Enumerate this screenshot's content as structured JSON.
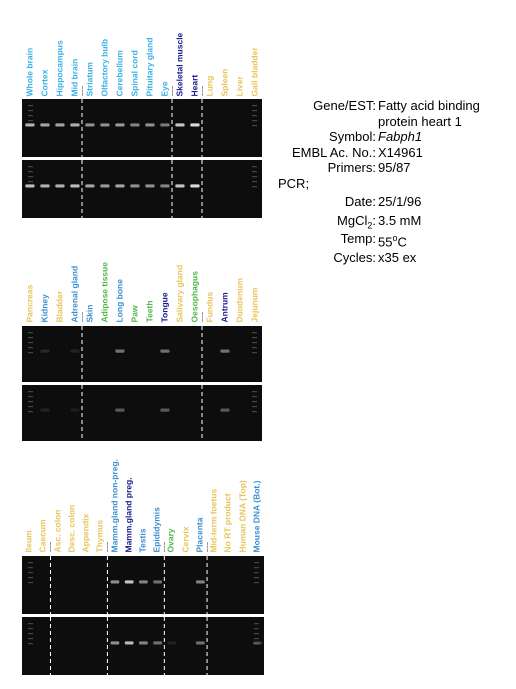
{
  "colors": {
    "brain": "#3ab0e6",
    "muscle": "#1a1a8c",
    "other": "#e8c45a",
    "green": "#4fb84a",
    "kidney": "#3a8fd0",
    "gel_bg": "#0d0d0d",
    "band": "#e6e6e6"
  },
  "panels": [
    {
      "labels": [
        {
          "text": "Whole brain",
          "color": "#3ab0e6"
        },
        {
          "text": "Cortex",
          "color": "#3ab0e6"
        },
        {
          "text": "Hippocampus",
          "color": "#3ab0e6"
        },
        {
          "text": "Mid brain",
          "color": "#3ab0e6"
        },
        {
          "text": "Striatum",
          "color": "#3ab0e6"
        },
        {
          "text": "Olfactory bulb",
          "color": "#3ab0e6"
        },
        {
          "text": "Cerebellum",
          "color": "#3ab0e6"
        },
        {
          "text": "Spinal cord",
          "color": "#3ab0e6"
        },
        {
          "text": "Pituitary gland",
          "color": "#3ab0e6"
        },
        {
          "text": "Eye",
          "color": "#3ab0e6"
        },
        {
          "text": "Skeletal muscle",
          "color": "#1a1a8c"
        },
        {
          "text": "Heart",
          "color": "#1a1a8c"
        },
        {
          "text": "Lung",
          "color": "#e8c45a"
        },
        {
          "text": "Spleen",
          "color": "#e8c45a"
        },
        {
          "text": "Liver",
          "color": "#e8c45a"
        },
        {
          "text": "Gall bladder",
          "color": "#e8c45a"
        }
      ],
      "gels": [
        {
          "bands": [
            0.75,
            0.7,
            0.7,
            0.75,
            0.6,
            0.6,
            0.65,
            0.55,
            0.6,
            0.5,
            0.85,
            0.95,
            0,
            0,
            0,
            0
          ]
        },
        {
          "bands": [
            0.8,
            0.75,
            0.75,
            0.8,
            0.7,
            0.65,
            0.7,
            0.6,
            0.6,
            0.55,
            0.85,
            0.95,
            0,
            0,
            0,
            0
          ]
        }
      ],
      "dividers": [
        4,
        10,
        12
      ]
    },
    {
      "labels": [
        {
          "text": "Pancreas",
          "color": "#e8c45a"
        },
        {
          "text": "Kidney",
          "color": "#3a8fd0"
        },
        {
          "text": "Bladder",
          "color": "#e8c45a"
        },
        {
          "text": "Adrenal gland",
          "color": "#3a8fd0"
        },
        {
          "text": "Skin",
          "color": "#3a8fd0"
        },
        {
          "text": "Adipose tissue",
          "color": "#4fb84a"
        },
        {
          "text": "Long bone",
          "color": "#3a8fd0"
        },
        {
          "text": "Paw",
          "color": "#4fb84a"
        },
        {
          "text": "Teeth",
          "color": "#4fb84a"
        },
        {
          "text": "Tongue",
          "color": "#1a1a8c"
        },
        {
          "text": "Salivary gland",
          "color": "#e8c45a"
        },
        {
          "text": "Oesophagus",
          "color": "#4fb84a"
        },
        {
          "text": "Fundus",
          "color": "#e8c45a"
        },
        {
          "text": "Antrum",
          "color": "#1a1a8c"
        },
        {
          "text": "Duodenum",
          "color": "#e8c45a"
        },
        {
          "text": "Jejunum",
          "color": "#e8c45a"
        }
      ],
      "gels": [
        {
          "bands": [
            0,
            0.12,
            0,
            0.1,
            0,
            0,
            0.45,
            0,
            0,
            0.45,
            0,
            0,
            0,
            0.45,
            0,
            0
          ]
        },
        {
          "bands": [
            0,
            0.1,
            0,
            0.08,
            0,
            0,
            0.35,
            0,
            0,
            0.35,
            0,
            0,
            0,
            0.35,
            0,
            0
          ]
        }
      ],
      "dividers": [
        4,
        12
      ]
    },
    {
      "labels": [
        {
          "text": "Ileum",
          "color": "#e8c45a"
        },
        {
          "text": "Caecum",
          "color": "#e8c45a"
        },
        {
          "text": "Asc. colon",
          "color": "#e8c45a"
        },
        {
          "text": "Desc. colon",
          "color": "#e8c45a"
        },
        {
          "text": "Appendix",
          "color": "#e8c45a"
        },
        {
          "text": "Thymus",
          "color": "#e8c45a"
        },
        {
          "text": "Mamm.gland non-preg.",
          "color": "#3a8fd0"
        },
        {
          "text": "Mamm.gland preg.",
          "color": "#1a1a8c"
        },
        {
          "text": "Testis",
          "color": "#3a8fd0"
        },
        {
          "text": "Epididymis",
          "color": "#3a8fd0"
        },
        {
          "text": "Ovary",
          "color": "#4fb84a"
        },
        {
          "text": "Cervix",
          "color": "#e8c45a"
        },
        {
          "text": "Placenta",
          "color": "#3a8fd0"
        },
        {
          "text": "Mid-term foetus",
          "color": "#e8c45a"
        },
        {
          "text": "No RT product",
          "color": "#e8c45a"
        },
        {
          "text": "Human DNA (Top)",
          "color": "#e8c45a"
        },
        {
          "text": "Mouse DNA (Bot.)",
          "color": "#3a8fd0"
        }
      ],
      "gels": [
        {
          "bands": [
            0,
            0,
            0,
            0,
            0,
            0,
            0.6,
            0.85,
            0.55,
            0.45,
            0,
            0,
            0.55,
            0,
            0,
            0,
            0
          ]
        },
        {
          "bands": [
            0,
            0,
            0,
            0,
            0,
            0,
            0.6,
            0.8,
            0.55,
            0.45,
            0.1,
            0,
            0.45,
            0,
            0,
            0,
            0.25
          ]
        }
      ],
      "dividers": [
        2,
        6,
        10,
        13
      ]
    }
  ],
  "info": {
    "gene_key": "Gene/EST:",
    "gene_val_1": "Fatty acid binding",
    "gene_val_2": "protein heart 1",
    "symbol_key": "Symbol:",
    "symbol_val": "Fabph1",
    "embl_key": "EMBL Ac. No.:",
    "embl_val": "X14961",
    "primers_key": "Primers:",
    "primers_val": "95/87",
    "pcr": "PCR;",
    "date_key": "Date:",
    "date_val": "25/1/96",
    "mgcl_key_pre": "MgCl",
    "mgcl_key_sub": "2",
    "mgcl_key_post": ":",
    "mgcl_val": "3.5 mM",
    "temp_key": "Temp:",
    "temp_val_num": "55",
    "temp_val_sup": "o",
    "temp_val_unit": "C",
    "cycles_key": "Cycles:",
    "cycles_val": "x35 ex"
  }
}
